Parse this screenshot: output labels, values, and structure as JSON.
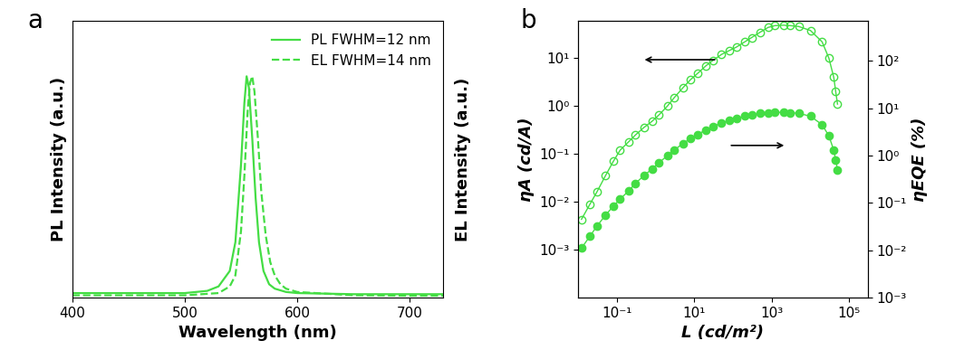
{
  "chart_data": [
    {
      "type": "line",
      "annotations": [
        "a"
      ],
      "x_label": "Wavelength (nm)",
      "y_label": "PL Intensity (a.u.)",
      "y2label": "EL Intensity (a.u.)",
      "xlim": [
        400,
        730
      ],
      "xticks": [
        400,
        500,
        600,
        700
      ],
      "ylim": [
        0,
        1.25
      ],
      "tick_labels": "x",
      "legend": "upper right",
      "series": [
        {
          "name": "PL FWHM=12 nm",
          "color": "#44dd44",
          "line_style": "solid",
          "x": [
            400,
            450,
            500,
            520,
            530,
            540,
            545,
            550,
            553,
            555,
            557,
            560,
            563,
            566,
            570,
            575,
            580,
            590,
            600,
            650,
            700,
            730
          ],
          "values": [
            0.02,
            0.02,
            0.02,
            0.03,
            0.05,
            0.12,
            0.25,
            0.6,
            0.88,
            1.0,
            0.95,
            0.72,
            0.45,
            0.25,
            0.12,
            0.06,
            0.04,
            0.025,
            0.02,
            0.015,
            0.015,
            0.015
          ]
        },
        {
          "name": "EL FWHM=14 nm",
          "color": "#44dd44",
          "line_style": "dashed",
          "x": [
            400,
            500,
            530,
            540,
            545,
            550,
            553,
            556,
            558,
            560,
            562,
            565,
            568,
            572,
            576,
            580,
            585,
            590,
            600,
            650,
            700,
            730
          ],
          "values": [
            0.01,
            0.01,
            0.02,
            0.05,
            0.1,
            0.3,
            0.55,
            0.85,
            0.97,
            1.0,
            0.93,
            0.72,
            0.48,
            0.28,
            0.16,
            0.1,
            0.06,
            0.04,
            0.025,
            0.01,
            0.008,
            0.008
          ]
        }
      ]
    },
    {
      "type": "line",
      "annotations": [
        "b"
      ],
      "log": true,
      "x_label": "L (cd/m²)",
      "y_label": "ηA (cd/A)",
      "y2_label": "ηEQE (%)",
      "xlim": [
        0.01,
        300000
      ],
      "xticks": [
        {
          "value": 0.1,
          "label": "10⁻¹"
        },
        {
          "value": 10,
          "label": "10¹"
        },
        {
          "value": 1000,
          "label": "10³"
        },
        {
          "value": 100000,
          "label": "10⁵"
        }
      ],
      "ylim": [
        0.0001,
        60
      ],
      "yticks": [
        {
          "value": 0.001,
          "label": "10⁻³"
        },
        {
          "value": 0.01,
          "label": "10⁻²"
        },
        {
          "value": 0.1,
          "label": "10⁻¹"
        },
        {
          "value": 1,
          "label": "10⁰"
        },
        {
          "value": 10,
          "label": "10¹"
        }
      ],
      "y2lim": [
        0.001,
        700
      ],
      "y2ticks": [
        {
          "value": 0.001,
          "label": "10⁻³"
        },
        {
          "value": 0.01,
          "label": "10⁻²"
        },
        {
          "value": 0.1,
          "label": "10⁻¹"
        },
        {
          "value": 1,
          "label": "10⁰"
        },
        {
          "value": 10,
          "label": "10¹"
        },
        {
          "value": 100,
          "label": "10²"
        }
      ],
      "series": [
        {
          "color": "#44dd44",
          "marker": "open_circle",
          "axis": "y",
          "x": [
            0.012,
            0.02,
            0.03,
            0.05,
            0.08,
            0.12,
            0.2,
            0.3,
            0.5,
            0.8,
            1.2,
            2,
            3,
            5,
            8,
            12,
            20,
            30,
            50,
            80,
            120,
            200,
            300,
            500,
            800,
            1200,
            2000,
            3000,
            5000,
            10000,
            20000,
            30000,
            40000,
            45000,
            50000
          ],
          "values": [
            0.0043,
            0.009,
            0.016,
            0.035,
            0.07,
            0.12,
            0.18,
            0.25,
            0.36,
            0.48,
            0.65,
            1.0,
            1.5,
            2.4,
            3.6,
            4.8,
            7.0,
            9.0,
            12,
            14.5,
            17,
            22,
            27,
            35,
            44,
            48,
            49,
            48,
            46,
            38,
            22,
            10,
            4,
            2,
            1.1
          ]
        },
        {
          "color": "#44dd44",
          "marker": "circle",
          "axis": "y2",
          "x": [
            0.012,
            0.02,
            0.03,
            0.05,
            0.08,
            0.12,
            0.2,
            0.3,
            0.5,
            0.8,
            1.2,
            2,
            3,
            5,
            8,
            12,
            20,
            30,
            50,
            80,
            120,
            200,
            300,
            500,
            800,
            1200,
            2000,
            3000,
            5000,
            10000,
            20000,
            30000,
            40000,
            45000,
            50000
          ],
          "values": [
            0.011,
            0.02,
            0.032,
            0.055,
            0.085,
            0.12,
            0.18,
            0.26,
            0.38,
            0.52,
            0.7,
            1.0,
            1.3,
            1.8,
            2.3,
            2.8,
            3.5,
            4.1,
            4.9,
            5.6,
            6.1,
            6.8,
            7.3,
            7.8,
            8.1,
            8.2,
            8.2,
            8.1,
            7.8,
            6.8,
            4.5,
            2.6,
            1.3,
            0.8,
            0.5
          ]
        }
      ]
    }
  ]
}
